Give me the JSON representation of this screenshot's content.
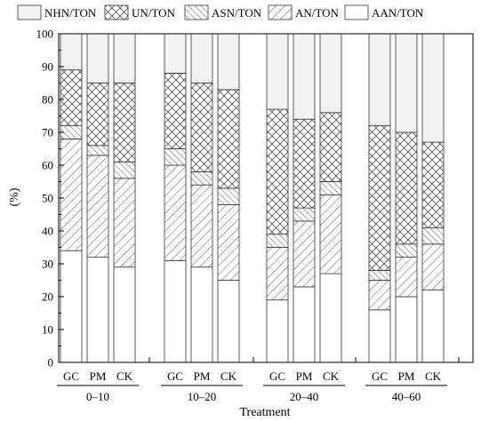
{
  "chart_data": {
    "type": "bar",
    "stacked": true,
    "xlabel": "Treatment",
    "ylabel": "(%)",
    "ylim": [
      0,
      100
    ],
    "yticks": [
      0,
      10,
      20,
      30,
      40,
      50,
      60,
      70,
      80,
      90,
      100
    ],
    "grid": false,
    "legend_position": "top",
    "groups": [
      {
        "label": "0–10",
        "categories": [
          "GC",
          "PM",
          "CK"
        ]
      },
      {
        "label": "10–20",
        "categories": [
          "GC",
          "PM",
          "CK"
        ]
      },
      {
        "label": "20–40",
        "categories": [
          "GC",
          "PM",
          "CK"
        ]
      },
      {
        "label": "40–60",
        "categories": [
          "GC",
          "PM",
          "CK"
        ]
      }
    ],
    "series": [
      {
        "name": "AAN/TON",
        "pattern": "solid-white",
        "values": [
          34,
          32,
          29,
          31,
          29,
          25,
          19,
          23,
          27,
          16,
          20,
          22
        ]
      },
      {
        "name": "AN/TON",
        "pattern": "diagonal-hatch",
        "values": [
          34,
          31,
          27,
          29,
          25,
          23,
          16,
          20,
          24,
          9,
          12,
          14
        ]
      },
      {
        "name": "ASN/TON",
        "pattern": "diagonal-hatch-dense",
        "values": [
          4,
          3,
          5,
          5,
          4,
          5,
          4,
          4,
          4,
          3,
          4,
          5
        ]
      },
      {
        "name": "UN/TON",
        "pattern": "cross-hatch",
        "values": [
          17,
          19,
          24,
          23,
          27,
          30,
          38,
          27,
          21,
          44,
          34,
          26
        ]
      },
      {
        "name": "NHN/TON",
        "pattern": "light-gray",
        "values": [
          11,
          15,
          15,
          12,
          15,
          17,
          23,
          26,
          24,
          28,
          30,
          33
        ]
      }
    ]
  }
}
